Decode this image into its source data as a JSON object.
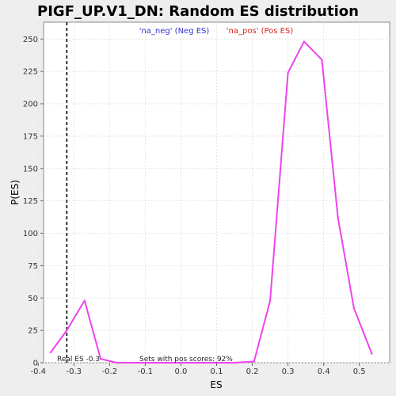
{
  "chart_data": {
    "type": "line",
    "title": "PIGF_UP.V1_DN: Random ES distribution",
    "xlabel": "ES",
    "ylabel": "P(ES)",
    "xlim": [
      -0.385,
      0.585
    ],
    "ylim": [
      0,
      263
    ],
    "x_ticks": [
      "-0.4",
      "-0.3",
      "-0.2",
      "-0.1",
      "0.0",
      "0.1",
      "0.2",
      "0.3",
      "0.4",
      "0.5"
    ],
    "y_ticks": [
      "0",
      "25",
      "50",
      "75",
      "100",
      "125",
      "150",
      "175",
      "200",
      "225",
      "250"
    ],
    "grid": true,
    "legend": [
      {
        "label": "'na_neg' (Neg ES)",
        "color": "#3333cc"
      },
      {
        "label": "'na_pos' (Pos ES)",
        "color": "#dd2222"
      }
    ],
    "series": [
      {
        "color": "#ee44ee",
        "x": [
          -0.365,
          -0.32,
          -0.27,
          -0.225,
          -0.18,
          -0.13,
          -0.09,
          -0.04,
          0.005,
          0.05,
          0.1,
          0.15,
          0.205,
          0.25,
          0.3,
          0.345,
          0.395,
          0.44,
          0.485,
          0.535
        ],
        "y": [
          8,
          25,
          48,
          3,
          0,
          0,
          0,
          0,
          0,
          0,
          0,
          0,
          1,
          48,
          224,
          248,
          234,
          112,
          42,
          7
        ]
      }
    ],
    "vline": {
      "x": -0.32,
      "style": "dashed",
      "color": "#333333"
    },
    "annotations": {
      "real_es": "Real ES -0.3",
      "pos_scores": "Sets with pos scores: 92%"
    }
  }
}
